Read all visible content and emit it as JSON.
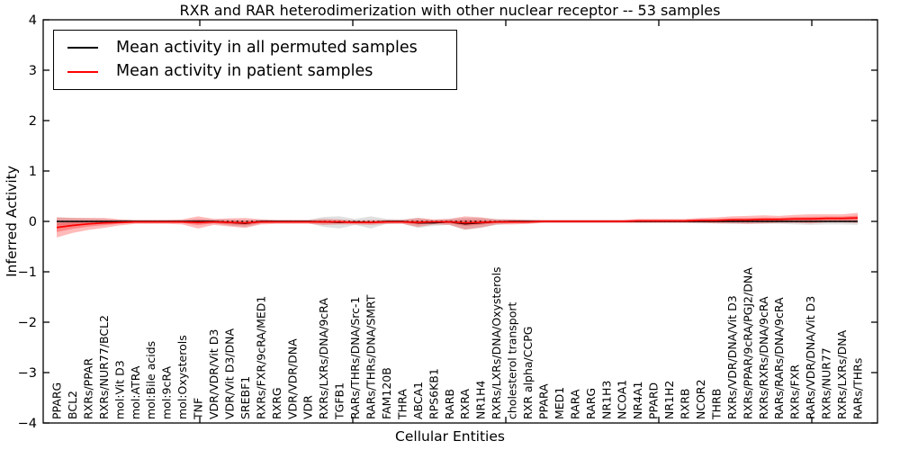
{
  "chart_data": {
    "type": "line",
    "title": "RXR and RAR heterodimerization with other nuclear receptor -- 53 samples",
    "xlabel": "Cellular Entities",
    "ylabel": "Inferred Activity",
    "ylim": [
      -4,
      4
    ],
    "y_ticks": [
      -4,
      -3,
      -2,
      -1,
      0,
      1,
      2,
      3,
      4
    ],
    "grid": false,
    "legend_position": "upper left",
    "zero_line": true,
    "categories": [
      "PPARG",
      "BCL2",
      "RXRs/PPAR",
      "RXRs/NUR77/BCL2",
      "mol:Vit D3",
      "mol:ATRA",
      "mol:Bile acids",
      "mol:9cRA",
      "mol:Oxysterols",
      "TNF",
      "VDR/VDR/Vit D3",
      "VDR/Vit D3/DNA",
      "SREBF1",
      "RXRs/FXR/9cRA/MED1",
      "RXRG",
      "VDR/VDR/DNA",
      "VDR",
      "RXRs/LXRs/DNA/9cRA",
      "TGFB1",
      "RARs/THRs/DNA/Src-1",
      "RARs/THRs/DNA/SMRT",
      "FAM120B",
      "THRA",
      "ABCA1",
      "RPS6KB1",
      "RARB",
      "RXRA",
      "NR1H4",
      "RXRs/LXRs/DNA/Oxysterols",
      "cholesterol transport",
      "RXR alpha/CCPG",
      "PPARA",
      "MED1",
      "RARA",
      "RARG",
      "NR1H3",
      "NCOA1",
      "NR4A1",
      "PPARD",
      "NR1H2",
      "RXRB",
      "NCOR2",
      "THRB",
      "RXRs/VDR/DNA/Vit D3",
      "RXRs/PPAR/9cRA/PGJ2/DNA",
      "RXRs/RXRs/DNA/9cRA",
      "RARs/RARs/DNA/9cRA",
      "RXRs/FXR",
      "RARs/VDR/DNA/Vit D3",
      "RXRs/NUR77",
      "RXRs/LXRs/DNA",
      "RARs/THRs"
    ],
    "series": [
      {
        "name": "Mean activity in all permuted samples",
        "color": "#000000",
        "band_color": "#999999",
        "values": [
          0,
          0,
          0,
          0,
          0,
          0,
          0,
          0,
          0,
          0,
          0,
          -0.02,
          -0.04,
          0,
          0,
          0,
          0,
          -0.01,
          -0.02,
          -0.01,
          -0.02,
          0,
          0,
          -0.03,
          -0.03,
          -0.01,
          -0.05,
          -0.03,
          -0.01,
          0,
          0,
          0,
          0,
          0,
          0,
          0,
          0,
          0,
          0,
          0,
          0,
          0,
          0,
          0,
          0,
          0,
          0,
          0,
          0,
          0,
          0,
          0
        ],
        "band": [
          0.08,
          0.07,
          0.06,
          0.05,
          0.04,
          0.03,
          0.03,
          0.03,
          0.03,
          0.05,
          0.04,
          0.06,
          0.07,
          0.04,
          0.03,
          0.03,
          0.03,
          0.1,
          0.12,
          0.06,
          0.12,
          0.05,
          0.04,
          0.1,
          0.06,
          0.06,
          0.12,
          0.1,
          0.06,
          0.04,
          0.04,
          0.03,
          0.03,
          0.03,
          0.03,
          0.03,
          0.03,
          0.03,
          0.03,
          0.03,
          0.03,
          0.04,
          0.04,
          0.05,
          0.05,
          0.05,
          0.05,
          0.06,
          0.07,
          0.06,
          0.06,
          0.07
        ]
      },
      {
        "name": "Mean activity in patient samples",
        "color": "#ff0000",
        "band_color": "#ff0000",
        "values": [
          -0.12,
          -0.08,
          -0.05,
          -0.03,
          -0.02,
          -0.01,
          -0.01,
          -0.01,
          -0.01,
          -0.02,
          -0.01,
          -0.02,
          -0.03,
          -0.01,
          -0.01,
          -0.01,
          -0.01,
          -0.01,
          -0.01,
          -0.02,
          -0.02,
          -0.01,
          -0.01,
          -0.02,
          -0.01,
          -0.01,
          -0.03,
          -0.02,
          -0.01,
          -0.01,
          -0.01,
          0,
          0,
          0,
          0,
          0,
          0,
          0.01,
          0.01,
          0.01,
          0.01,
          0.02,
          0.02,
          0.03,
          0.03,
          0.04,
          0.04,
          0.05,
          0.05,
          0.06,
          0.06,
          0.07
        ],
        "band": [
          0.2,
          0.15,
          0.12,
          0.1,
          0.06,
          0.04,
          0.04,
          0.04,
          0.05,
          0.12,
          0.06,
          0.08,
          0.1,
          0.05,
          0.04,
          0.04,
          0.04,
          0.06,
          0.05,
          0.04,
          0.05,
          0.04,
          0.04,
          0.09,
          0.05,
          0.06,
          0.13,
          0.1,
          0.05,
          0.05,
          0.04,
          0.03,
          0.03,
          0.03,
          0.03,
          0.03,
          0.03,
          0.04,
          0.04,
          0.04,
          0.04,
          0.05,
          0.06,
          0.07,
          0.08,
          0.08,
          0.07,
          0.08,
          0.09,
          0.08,
          0.08,
          0.1
        ]
      }
    ]
  }
}
